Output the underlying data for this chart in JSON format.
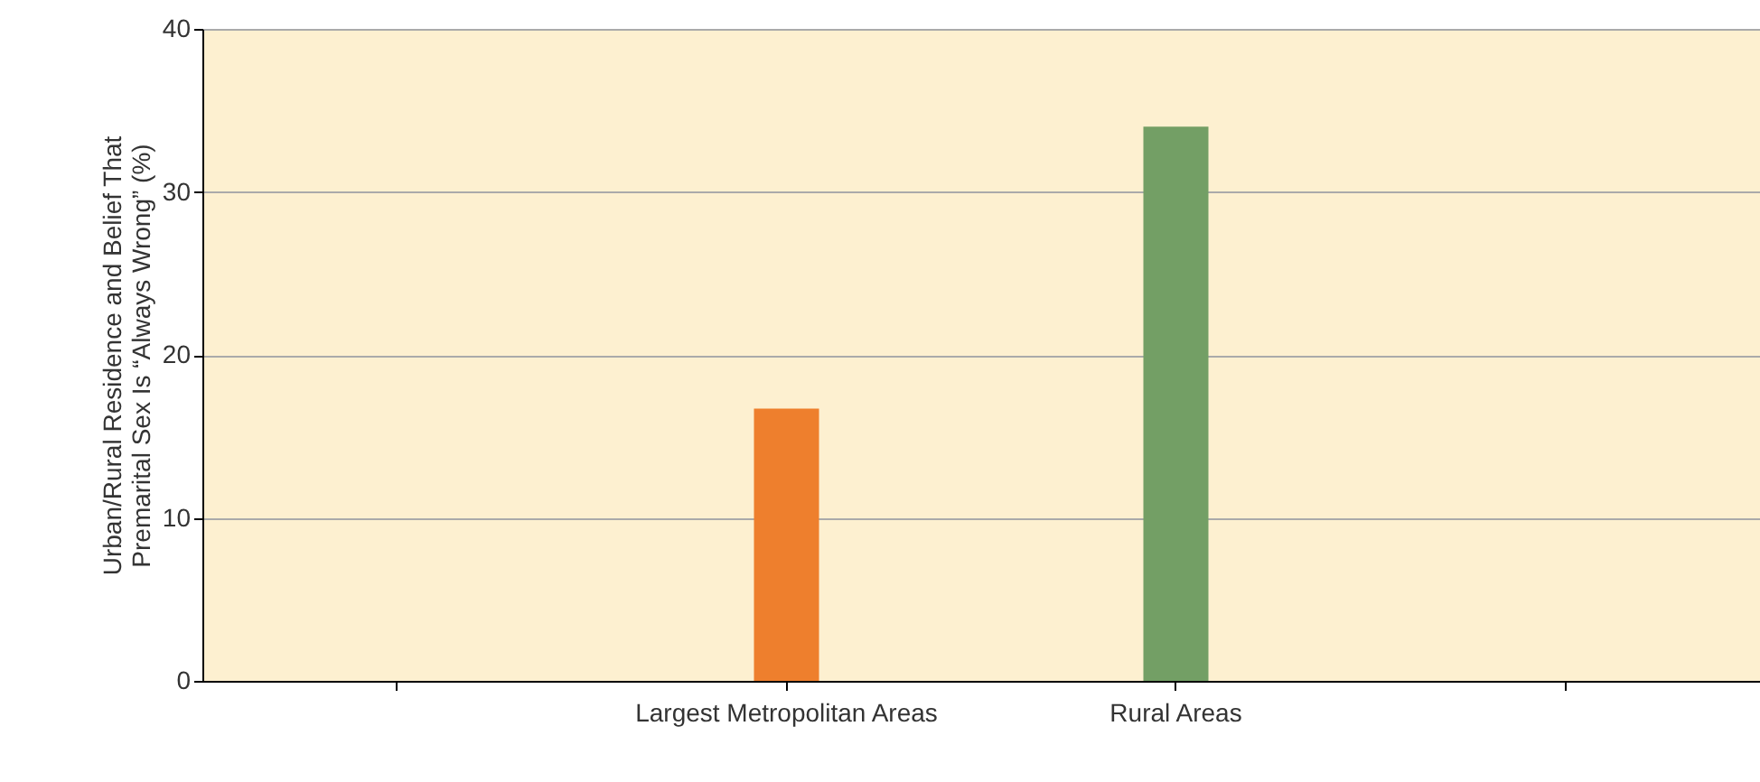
{
  "chart_data": {
    "type": "bar",
    "ylabel": "Urban/Rural Residence and Belief That\nPremarital Sex Is “Always Wrong” (%)",
    "categories": [
      null,
      "Largest Metropolitan Areas",
      "Rural Areas",
      null
    ],
    "values": [
      null,
      16.7,
      34.0,
      null
    ],
    "colors": [
      "#ee7f2d",
      "#ee7f2d",
      "#739f65",
      "#739f65"
    ],
    "ylim": [
      0,
      40
    ],
    "yticks": [
      0,
      10,
      20,
      30,
      40
    ],
    "grid": "y"
  }
}
